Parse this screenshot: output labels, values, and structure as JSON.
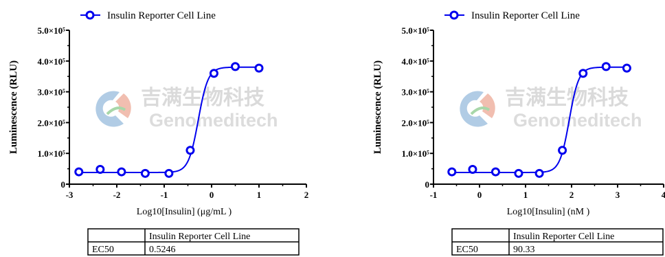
{
  "chart_data": [
    {
      "type": "scatter",
      "ylabel": "Luminescence (RLU)",
      "xlabel": "Log10[Insulin] (μg/mL )",
      "xlim": [
        -3,
        2
      ],
      "ylim": [
        0,
        500000
      ],
      "grid": false,
      "legend_position": "top-left",
      "xticks": [
        -3,
        -2,
        -1,
        0,
        1,
        2
      ],
      "xtick_labels": [
        "-3",
        "-2",
        "-1",
        "0",
        "1",
        "2"
      ],
      "yticks": [
        0,
        100000,
        200000,
        300000,
        400000,
        500000
      ],
      "ytick_labels": [
        "0",
        "1.0×10⁵",
        "2.0×10⁵",
        "3.0×10⁵",
        "4.0×10⁵",
        "5.0×10⁵"
      ],
      "series": [
        {
          "name": "Insulin Reporter Cell Line",
          "color": "#0000ee",
          "x": [
            -2.8,
            -2.35,
            -1.9,
            -1.4,
            -0.9,
            -0.45,
            0.05,
            0.5,
            1.0
          ],
          "y": [
            40000,
            48000,
            40000,
            35000,
            35000,
            110000,
            360000,
            382000,
            377000
          ],
          "fit": {
            "bottom": 38000,
            "top": 380000,
            "logEC50": -0.28,
            "hill": 4.2
          }
        }
      ],
      "table": {
        "header": [
          "",
          "Insulin Reporter Cell Line"
        ],
        "rows": [
          [
            "EC50",
            "0.5246"
          ]
        ]
      },
      "watermark": {
        "cn": "吉满生物科技",
        "en": "Genomeditech"
      }
    },
    {
      "type": "scatter",
      "ylabel": "Luminescence (RLU)",
      "xlabel": "Log10[Insulin] (nM )",
      "xlim": [
        -1,
        4
      ],
      "ylim": [
        0,
        500000
      ],
      "grid": false,
      "legend_position": "top-left",
      "xticks": [
        -1,
        0,
        1,
        2,
        3,
        4
      ],
      "xtick_labels": [
        "-1",
        "0",
        "1",
        "2",
        "3",
        "4"
      ],
      "yticks": [
        0,
        100000,
        200000,
        300000,
        400000,
        500000
      ],
      "ytick_labels": [
        "0",
        "1.0×10⁵",
        "2.0×10⁵",
        "3.0×10⁵",
        "4.0×10⁵",
        "5.0×10⁵"
      ],
      "series": [
        {
          "name": "Insulin Reporter Cell Line",
          "color": "#0000ee",
          "x": [
            -0.6,
            -0.15,
            0.35,
            0.85,
            1.3,
            1.8,
            2.25,
            2.75,
            3.2
          ],
          "y": [
            40000,
            48000,
            40000,
            35000,
            35000,
            110000,
            360000,
            382000,
            377000
          ],
          "fit": {
            "bottom": 38000,
            "top": 380000,
            "logEC50": 1.95,
            "hill": 4.2
          }
        }
      ],
      "table": {
        "header": [
          "",
          "Insulin Reporter Cell Line"
        ],
        "rows": [
          [
            "EC50",
            "90.33"
          ]
        ]
      },
      "watermark": {
        "cn": "吉满生物科技",
        "en": "Genomeditech"
      }
    }
  ]
}
